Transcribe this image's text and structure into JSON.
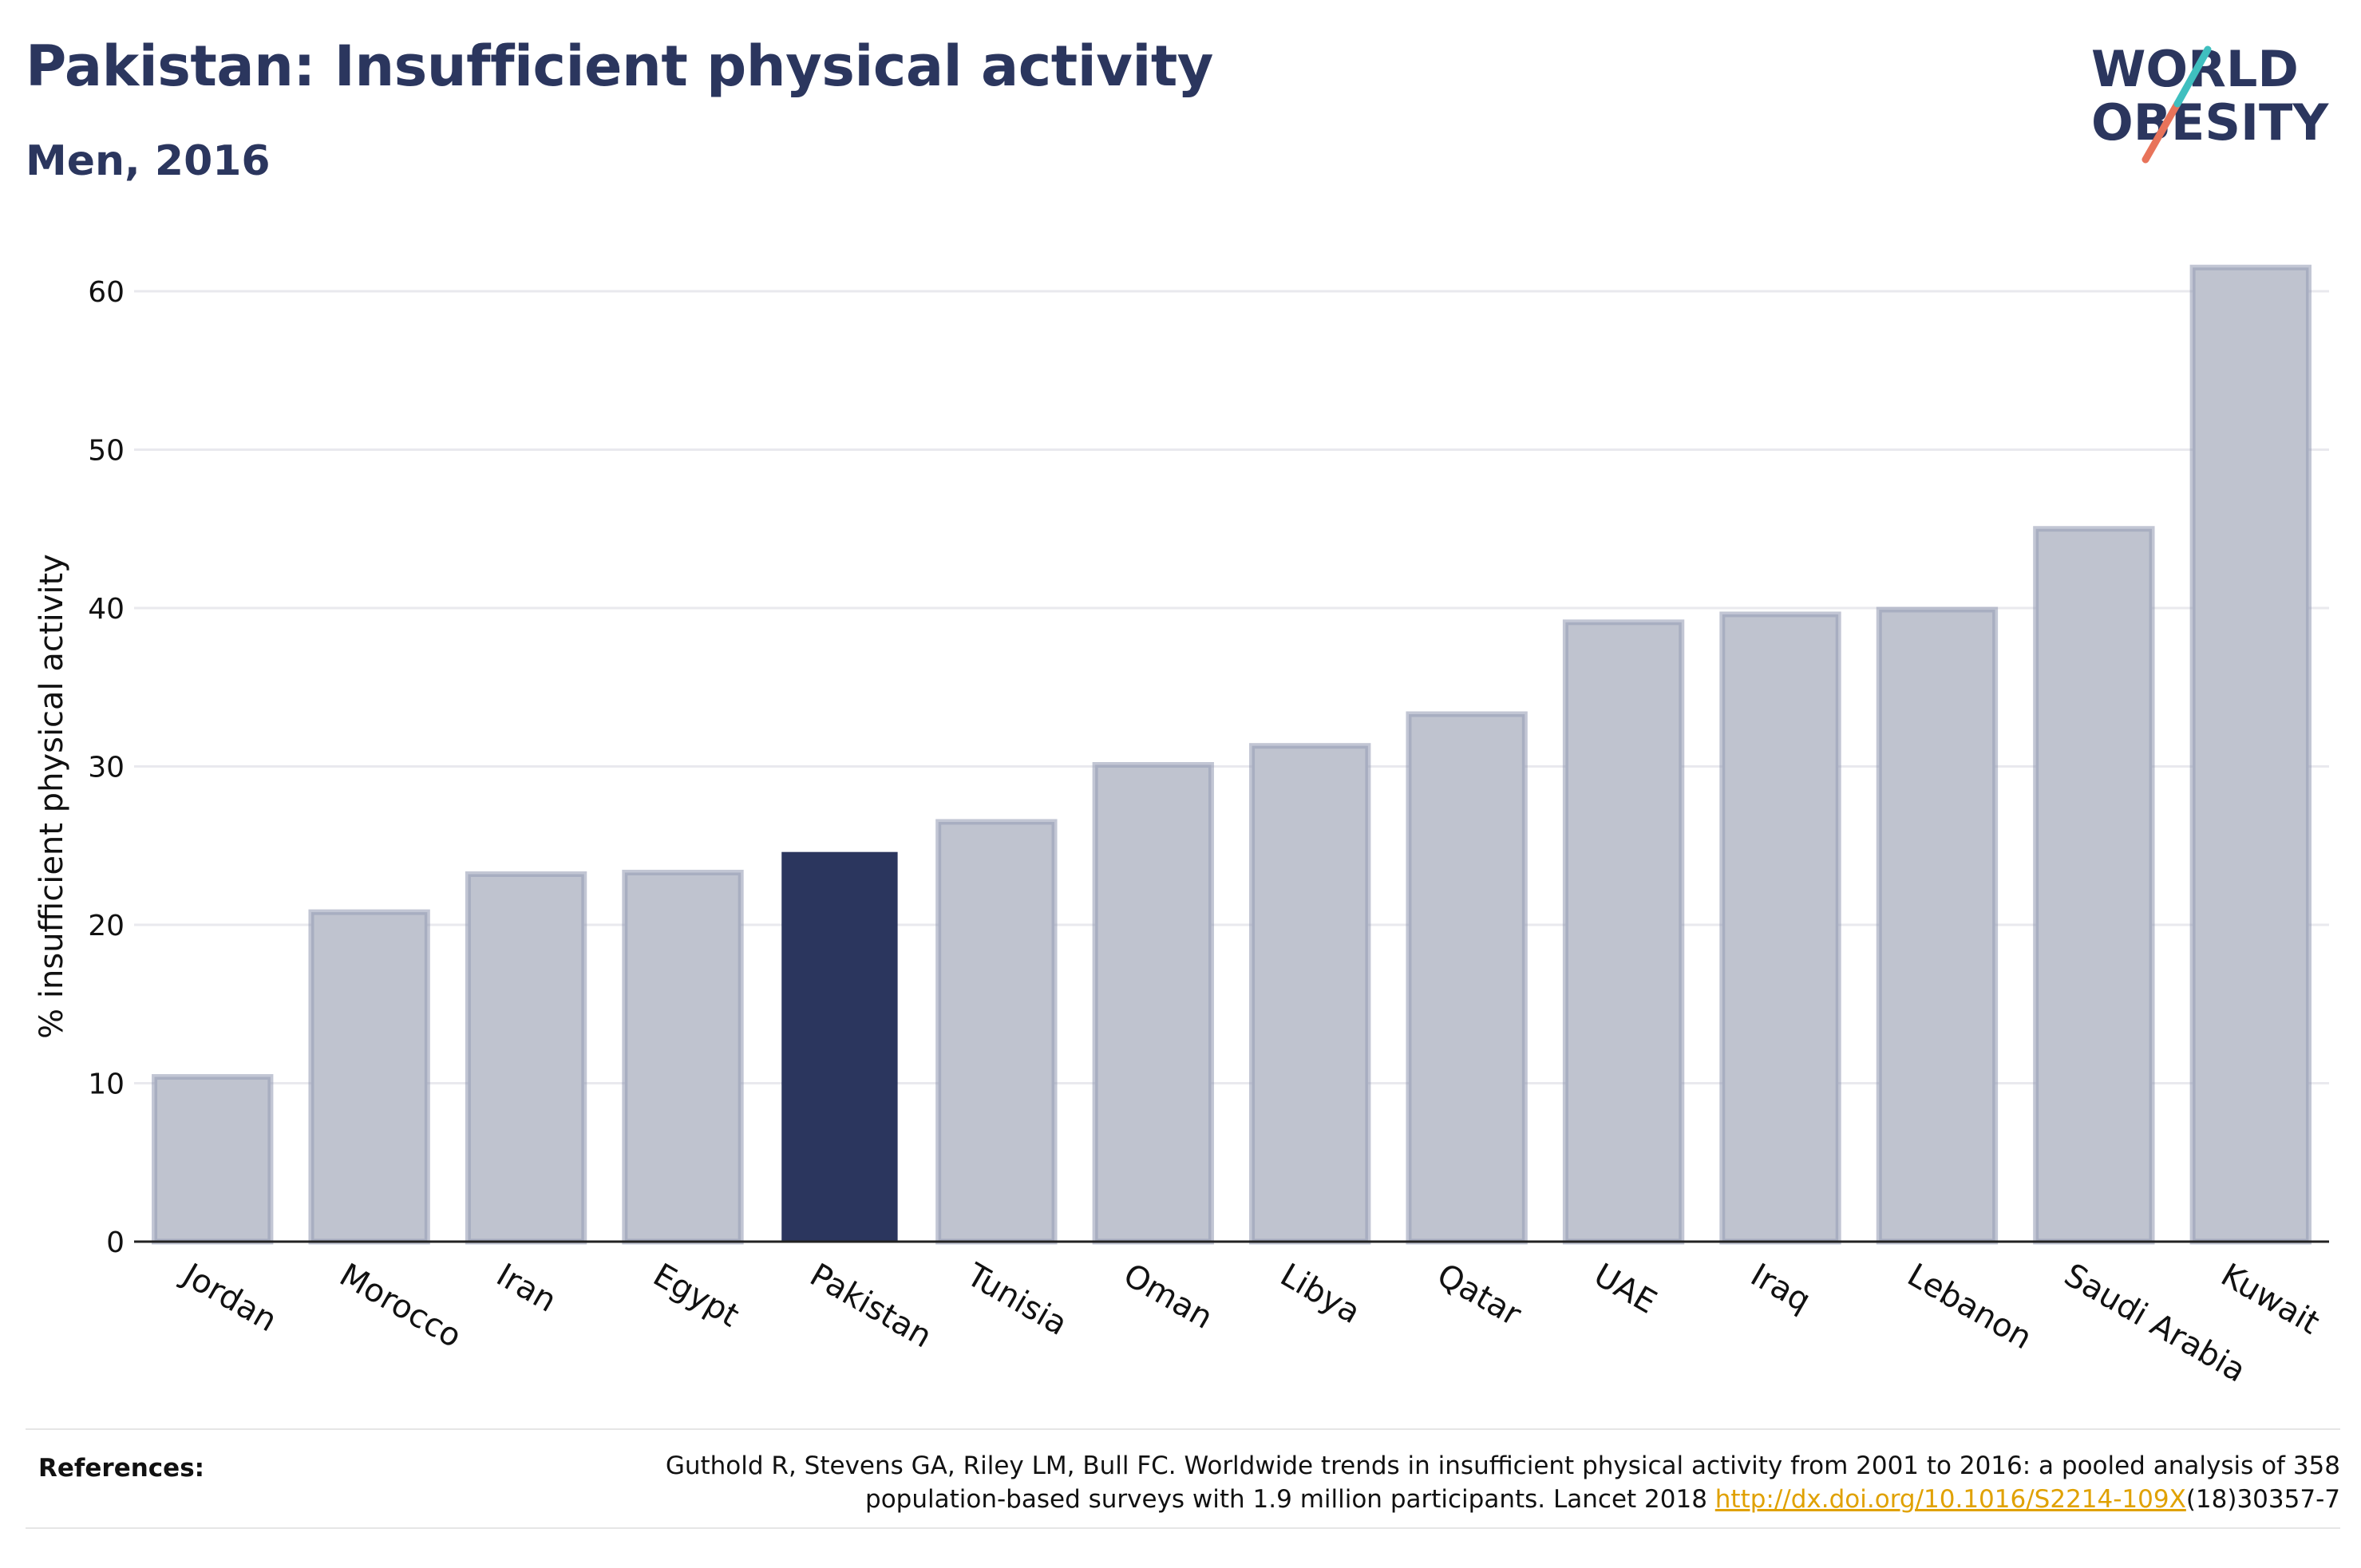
{
  "header": {
    "title": "Pakistan: Insufficient physical activity",
    "subtitle": "Men, 2016"
  },
  "logo": {
    "line1": "WORLD",
    "line2": "OBESITY",
    "accent_colors": [
      "#3fbfbf",
      "#e8735a"
    ]
  },
  "chart_data": {
    "type": "bar",
    "title": "Pakistan: Insufficient physical activity",
    "subtitle": "Men, 2016",
    "xlabel": "",
    "ylabel": "% insufficient physical activity",
    "ylim": [
      0,
      62
    ],
    "yticks": [
      0,
      10,
      20,
      30,
      40,
      50,
      60
    ],
    "categories": [
      "Jordan",
      "Morocco",
      "Iran",
      "Egypt",
      "Pakistan",
      "Tunisia",
      "Oman",
      "Libya",
      "Qatar",
      "UAE",
      "Iraq",
      "Lebanon",
      "Saudi Arabia",
      "Kuwait"
    ],
    "values": [
      10.4,
      20.8,
      23.2,
      23.3,
      24.6,
      26.5,
      30.1,
      31.3,
      33.3,
      39.1,
      39.6,
      39.9,
      45.0,
      61.5
    ],
    "highlight": "Pakistan",
    "colors": {
      "highlight": "#2b365e",
      "other_fill": "#bfc3cf",
      "other_stroke": "#9aa0b8"
    },
    "grid": true,
    "legend": "none"
  },
  "references": {
    "label": "References:",
    "line1": "Guthold R, Stevens GA, Riley LM, Bull FC. Worldwide trends in insufficient physical activity from 2001 to 2016: a pooled analysis of 358",
    "line2_prefix": "population-based surveys with 1.9 million participants. Lancet 2018 ",
    "link_text": "http://dx.doi.org/10.1016/S2214-109X",
    "line2_suffix": "(18)30357-7"
  }
}
